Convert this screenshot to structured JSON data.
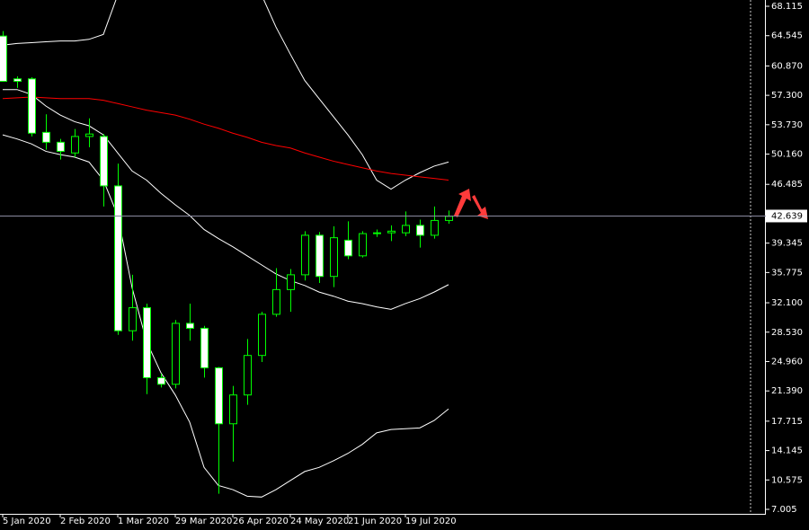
{
  "chart_data": {
    "type": "candlestick",
    "categories": [
      "5 Jan 2020",
      null,
      null,
      null,
      "2 Feb 2020",
      null,
      null,
      null,
      "1 Mar 2020",
      null,
      null,
      null,
      "29 Mar 2020",
      null,
      null,
      null,
      "26 Apr 2020",
      null,
      null,
      null,
      "24 May 2020",
      null,
      null,
      null,
      "21 Jun 2020",
      null,
      null,
      null,
      "19 Jul 2020",
      null,
      null,
      null
    ],
    "open": [
      64.5,
      59.3,
      59.3,
      52.8,
      51.6,
      50.3,
      52.3,
      52.3,
      46.3,
      28.7,
      31.5,
      23.0,
      22.2,
      29.6,
      29.0,
      24.2,
      17.4,
      20.9,
      25.7,
      30.7,
      33.7,
      35.5,
      40.3,
      35.3,
      39.7,
      37.8,
      40.5,
      40.6,
      40.6,
      41.5,
      40.3,
      42.1
    ],
    "high": [
      65.1,
      59.6,
      59.5,
      55.0,
      52.0,
      53.2,
      54.5,
      52.6,
      49.0,
      35.5,
      32.0,
      23.5,
      30.0,
      32.0,
      29.3,
      24.3,
      22.0,
      27.7,
      31.0,
      36.3,
      36.2,
      40.8,
      40.7,
      41.4,
      42.0,
      40.8,
      41.0,
      41.5,
      43.2,
      42.2,
      43.8,
      43.3
    ],
    "low": [
      59.06,
      58.2,
      52.3,
      50.7,
      49.5,
      49.8,
      51.0,
      43.8,
      28.2,
      27.5,
      21.0,
      21.8,
      21.7,
      27.5,
      23.0,
      8.9,
      12.8,
      19.7,
      24.9,
      30.4,
      31.0,
      34.8,
      34.5,
      34.0,
      37.4,
      37.6,
      40.1,
      39.6,
      40.2,
      38.8,
      39.9,
      41.7
    ],
    "close": [
      59.0,
      59.0,
      52.7,
      51.6,
      50.5,
      52.3,
      52.6,
      46.3,
      28.7,
      31.5,
      23.0,
      22.2,
      29.6,
      29.0,
      24.2,
      17.4,
      20.9,
      25.7,
      30.7,
      33.7,
      35.5,
      40.3,
      35.3,
      40.0,
      37.8,
      40.5,
      40.6,
      40.8,
      41.5,
      40.3,
      42.1,
      42.6
    ],
    "up_color": "#000000",
    "down_color": "#ffffff",
    "wick_color": "#00ff00",
    "overlays": [
      {
        "color": "#ffffff",
        "values": [
          63.4,
          63.6,
          63.7,
          63.8,
          63.9,
          63.9,
          64.1,
          64.7,
          69.5,
          null,
          null,
          null,
          null,
          null,
          null,
          null,
          null,
          null,
          69.5,
          65.6,
          62.3,
          59.1,
          56.9,
          54.7,
          52.5,
          50.1,
          47.0,
          45.9,
          47.0,
          47.9,
          48.7,
          49.2
        ]
      },
      {
        "color": "#ffffff",
        "values": [
          58.0,
          58.0,
          57.4,
          56.0,
          54.9,
          54.1,
          53.6,
          52.5,
          50.3,
          48.1,
          47.0,
          45.4,
          44.0,
          42.7,
          41.0,
          39.9,
          38.9,
          37.8,
          36.7,
          35.6,
          34.8,
          34.2,
          33.4,
          32.9,
          32.3,
          32.0,
          31.6,
          31.3,
          32.0,
          32.6,
          33.4,
          34.3
        ]
      },
      {
        "color": "#ffffff",
        "values": [
          52.5,
          52.0,
          51.4,
          50.5,
          50.1,
          49.8,
          49.2,
          47.0,
          42.7,
          33.9,
          27.4,
          23.6,
          20.9,
          17.6,
          12.1,
          9.9,
          9.4,
          8.6,
          8.5,
          9.4,
          10.5,
          11.6,
          12.1,
          12.9,
          13.8,
          14.9,
          16.3,
          16.7,
          16.8,
          16.9,
          17.8,
          19.2
        ]
      },
      {
        "color": "#ff0000",
        "values": [
          56.9,
          57.0,
          57.1,
          57.0,
          56.9,
          56.9,
          56.9,
          56.7,
          56.3,
          55.9,
          55.5,
          55.2,
          54.9,
          54.4,
          53.8,
          53.3,
          52.7,
          52.2,
          51.6,
          51.2,
          50.9,
          50.3,
          49.8,
          49.3,
          48.9,
          48.5,
          48.1,
          47.8,
          47.6,
          47.4,
          47.2,
          47.0
        ]
      }
    ],
    "current_price": 42.639,
    "ylim": [
      6.46,
      68.88
    ],
    "yticks": [
      68.115,
      64.545,
      {
        "value": 60.87,
        "label": "60.870"
      },
      {
        "value": 57.3,
        "label": "57.300"
      },
      {
        "value": 53.73,
        "label": "53.730"
      },
      {
        "value": 50.16,
        "label": "50.160"
      },
      46.485,
      39.345,
      35.775,
      {
        "value": 32.1,
        "label": "32.100"
      },
      {
        "value": 28.53,
        "label": "28.530"
      },
      {
        "value": 24.96,
        "label": "24.960"
      },
      {
        "value": 21.39,
        "label": "21.390"
      },
      17.715,
      14.145,
      10.575,
      7.005
    ]
  }
}
